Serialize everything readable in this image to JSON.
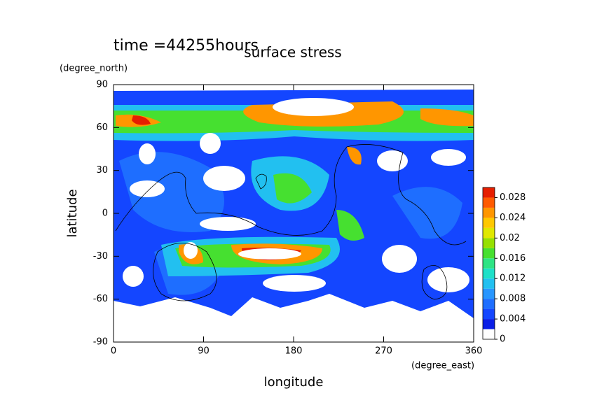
{
  "chart_data": {
    "type": "contour",
    "title": "surface stress",
    "annotation": "time =44255hours",
    "xlabel": "longitude",
    "ylabel": "latitude",
    "xunit": "(degree_east)",
    "yunit": "(degree_north)",
    "xlim": [
      0,
      360
    ],
    "xticks": [
      0,
      90,
      180,
      270,
      360
    ],
    "ylim": [
      -90,
      90
    ],
    "yticks": [
      -90,
      -60,
      -30,
      0,
      30,
      60,
      90
    ],
    "colorbar": {
      "levels": [
        0,
        0.002,
        0.004,
        0.006,
        0.008,
        0.01,
        0.012,
        0.014,
        0.016,
        0.018,
        0.02,
        0.022,
        0.024,
        0.026,
        0.028,
        0.03
      ],
      "colors": [
        "#ffffff",
        "#0a1ee6",
        "#1446ff",
        "#1e6eff",
        "#2896ff",
        "#22c0f0",
        "#1ee0c8",
        "#2ee484",
        "#46e030",
        "#96e000",
        "#e0e800",
        "#ffc800",
        "#ff9600",
        "#ff5a00",
        "#e61e00"
      ],
      "ticks": [
        0,
        0.004,
        0.008,
        0.012,
        0.016,
        0.02,
        0.024,
        0.028
      ]
    }
  }
}
